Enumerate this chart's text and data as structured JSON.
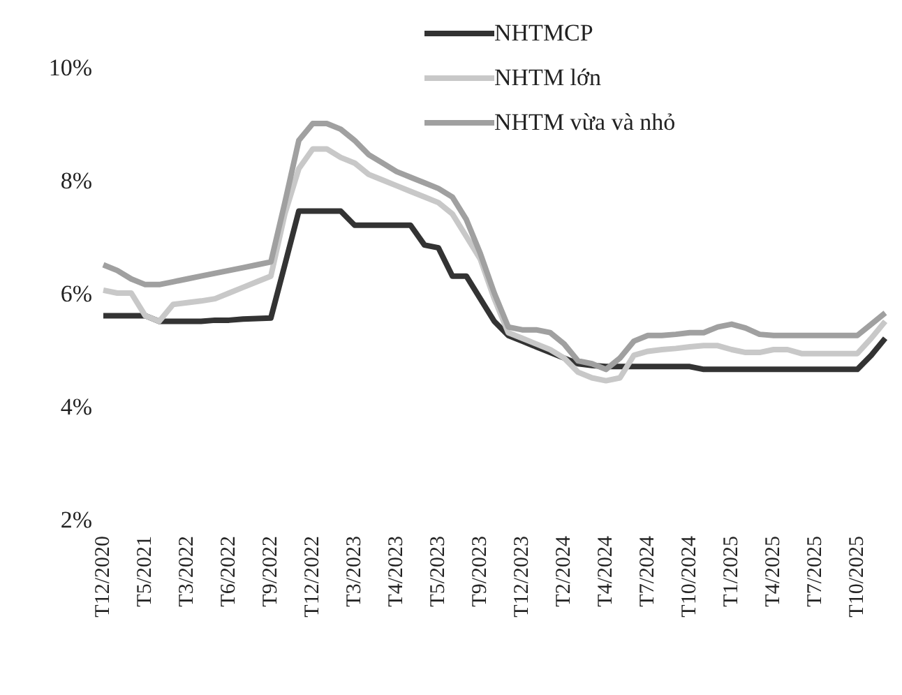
{
  "chart_data": {
    "type": "line",
    "categories": [
      "T12/2020",
      null,
      null,
      "T5/2021",
      null,
      null,
      "T3/2022",
      null,
      null,
      "T6/2022",
      null,
      null,
      "T9/2022",
      null,
      null,
      "T12/2022",
      null,
      null,
      "T3/2023",
      null,
      null,
      "T4/2023",
      null,
      null,
      "T5/2023",
      null,
      null,
      "T9/2023",
      null,
      null,
      "T12/2023",
      null,
      null,
      "T2/2024",
      null,
      null,
      "T4/2024",
      null,
      null,
      "T7/2024",
      null,
      null,
      "T10/2024",
      null,
      null,
      "T1/2025",
      null,
      null,
      "T4/2025",
      null,
      null,
      "T7/2025",
      null,
      null,
      "T10/2025",
      null,
      null
    ],
    "series": [
      {
        "name": "NHTMCP",
        "color": "#333333",
        "values": [
          5.6,
          5.6,
          5.6,
          5.6,
          5.5,
          5.5,
          5.5,
          5.5,
          5.52,
          5.52,
          5.54,
          5.55,
          5.56,
          6.5,
          7.45,
          7.45,
          7.45,
          7.45,
          7.2,
          7.2,
          7.2,
          7.2,
          7.2,
          6.85,
          6.8,
          6.3,
          6.3,
          5.9,
          5.5,
          5.25,
          5.15,
          5.05,
          4.95,
          4.85,
          4.75,
          4.72,
          4.7,
          4.7,
          4.7,
          4.7,
          4.7,
          4.7,
          4.7,
          4.65,
          4.65,
          4.65,
          4.65,
          4.65,
          4.65,
          4.65,
          4.65,
          4.65,
          4.65,
          4.65,
          4.65,
          4.9,
          5.2
        ]
      },
      {
        "name": "NHTM lớn",
        "color": "#c8c8c8",
        "values": [
          6.05,
          6.0,
          6.0,
          5.6,
          5.5,
          5.8,
          5.83,
          5.86,
          5.9,
          6.0,
          6.1,
          6.2,
          6.3,
          7.4,
          8.2,
          8.55,
          8.55,
          8.4,
          8.3,
          8.1,
          8.0,
          7.9,
          7.8,
          7.7,
          7.6,
          7.4,
          7.0,
          6.6,
          5.9,
          5.3,
          5.2,
          5.1,
          5.0,
          4.85,
          4.6,
          4.5,
          4.45,
          4.5,
          4.9,
          4.97,
          5.0,
          5.02,
          5.05,
          5.07,
          5.07,
          5.0,
          4.95,
          4.95,
          5.0,
          5.0,
          4.93,
          4.93,
          4.93,
          4.93,
          4.93,
          5.2,
          5.5
        ]
      },
      {
        "name": "NHTM vừa và nhỏ",
        "color": "#a0a0a0",
        "values": [
          6.5,
          6.4,
          6.25,
          6.15,
          6.15,
          6.2,
          6.25,
          6.3,
          6.35,
          6.4,
          6.45,
          6.5,
          6.55,
          7.6,
          8.7,
          9.0,
          9.0,
          8.9,
          8.7,
          8.45,
          8.3,
          8.15,
          8.05,
          7.95,
          7.85,
          7.7,
          7.3,
          6.7,
          6.0,
          5.4,
          5.35,
          5.35,
          5.3,
          5.1,
          4.8,
          4.75,
          4.65,
          4.85,
          5.15,
          5.25,
          5.25,
          5.27,
          5.3,
          5.3,
          5.4,
          5.45,
          5.38,
          5.27,
          5.25,
          5.25,
          5.25,
          5.25,
          5.25,
          5.25,
          5.25,
          5.45,
          5.65
        ]
      }
    ],
    "ylim": [
      2,
      10
    ],
    "yticks": [
      {
        "value": 2,
        "label": "2%"
      },
      {
        "value": 4,
        "label": "4%"
      },
      {
        "value": 6,
        "label": "6%"
      },
      {
        "value": 8,
        "label": "8%"
      },
      {
        "value": 10,
        "label": "10%"
      }
    ],
    "grid": false,
    "legend": "top right",
    "marker": "none",
    "line_style": "solid"
  }
}
